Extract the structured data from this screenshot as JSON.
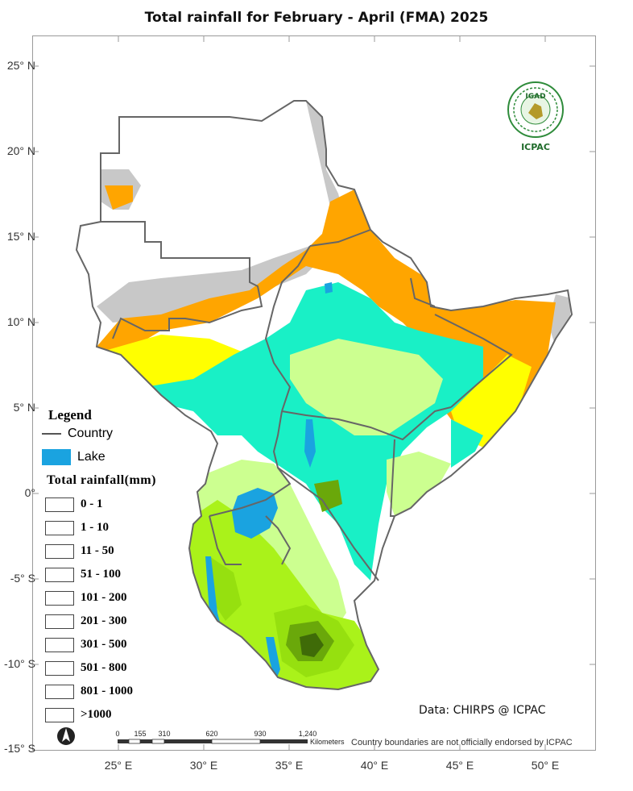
{
  "title": "Total rainfall  for February - April (FMA)  2025",
  "latitudes": [
    "25° N",
    "20° N",
    "15° N",
    "10° N",
    "5° N",
    "0°",
    "-5° S",
    "-10° S",
    "-15° S"
  ],
  "longitudes": [
    "25° E",
    "30° E",
    "35° E",
    "40° E",
    "45° E",
    "50° E"
  ],
  "legend": {
    "title": "Legend",
    "country_label": "Country",
    "lake_label": "Lake",
    "lake_color": "#1aa3e0",
    "rain_title": "Total rainfall(mm)",
    "classes": [
      {
        "label": "0 - 1",
        "color": "#ffffff"
      },
      {
        "label": "1 - 10",
        "color": "#c8c8c8"
      },
      {
        "label": "11 - 50",
        "color": "#ffa500"
      },
      {
        "label": "51 - 100",
        "color": "#ffff00"
      },
      {
        "label": "101 - 200",
        "color": "#19f0c6"
      },
      {
        "label": "201 - 300",
        "color": "#ccff90"
      },
      {
        "label": "301 - 500",
        "color": "#aaf21a"
      },
      {
        "label": "501 - 800",
        "color": "#96e00f"
      },
      {
        "label": "801 - 1000",
        "color": "#6aa80a"
      },
      {
        "label": ">1000",
        "color": "#3f6b08"
      }
    ]
  },
  "credit": "Data: CHIRPS @ ICPAC",
  "disclaimer": "Country boundaries are not officially endorsed by ICPAC",
  "scale": {
    "ticks": [
      "0",
      "155",
      "310",
      "620",
      "930",
      "1,240"
    ],
    "unit": "Kilometers"
  },
  "logo": {
    "top_text": "IGAD",
    "bottom_text": "ICPAC"
  }
}
